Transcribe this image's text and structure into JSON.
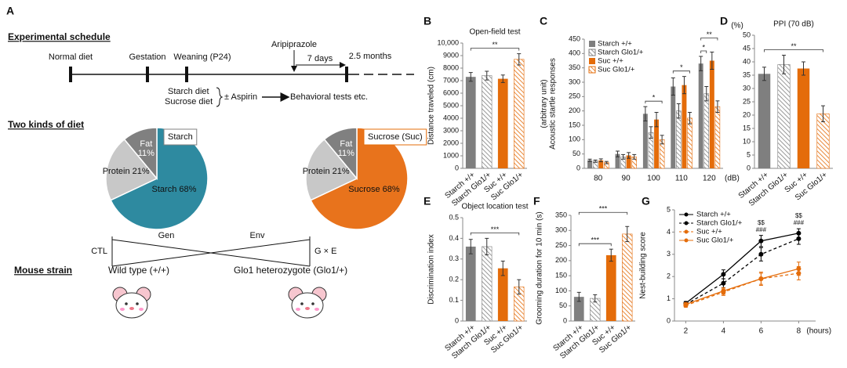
{
  "panel_a": {
    "letter": "A",
    "schedule_title": "Experimental schedule",
    "timeline": [
      "Normal diet",
      "Gestation",
      "Weaning (P24)"
    ],
    "drug": "Aripiprazole",
    "interval": "7 days",
    "duration": "2.5 months",
    "diets": [
      "Starch diet",
      "Sucrose diet"
    ],
    "treatment": "± Aspirin",
    "tests": "Behavioral tests etc.",
    "diet_title": "Two kinds of diet",
    "factors": [
      "Gen",
      "Env"
    ],
    "groups": [
      "CTL",
      "G × E"
    ],
    "strain_title": "Mouse strain",
    "strains": [
      "Wild type (+/+)",
      "Glo1 heterozygote (Glo1/+)"
    ]
  },
  "chart_data": [
    {
      "type": "bar",
      "panel": "B",
      "title": "Open-field test",
      "ylabel": "Distance traveled (cm)",
      "categories": [
        "Starch +/+",
        "Starch Glo1/+",
        "Suc +/+",
        "Suc Glo1/+"
      ],
      "values": [
        7300,
        7400,
        7150,
        8700
      ],
      "errors": [
        350,
        350,
        300,
        450
      ],
      "colors": [
        "#7f7f7f",
        "#7f7f7f",
        "#e46c0a",
        "#e46c0a"
      ],
      "hatched": [
        false,
        true,
        false,
        true
      ],
      "ylim": [
        0,
        10000
      ],
      "yticks": [
        0,
        1000,
        2000,
        3000,
        4000,
        5000,
        6000,
        7000,
        8000,
        9000,
        {
          "value": 10000,
          "label": "10,000"
        }
      ],
      "significance": [
        {
          "text": "**",
          "between": [
            0,
            3
          ]
        }
      ]
    },
    {
      "type": "grouped_bar",
      "panel": "C",
      "ylabel": [
        "Acoustic startle responses",
        "(arbitrary unit)"
      ],
      "categories": [
        "80",
        "90",
        "100",
        "110",
        "120"
      ],
      "x_unit": "(dB)",
      "series": [
        {
          "name": "Starch +/+",
          "color": "#7f7f7f",
          "hatched": false,
          "values": [
            28,
            50,
            190,
            285,
            365
          ],
          "errors": [
            4,
            10,
            25,
            30,
            25
          ]
        },
        {
          "name": "Starch Glo1/+",
          "color": "#7f7f7f",
          "hatched": true,
          "values": [
            25,
            40,
            125,
            200,
            260
          ],
          "errors": [
            4,
            8,
            20,
            25,
            25
          ]
        },
        {
          "name": "Suc +/+",
          "color": "#e46c0a",
          "hatched": false,
          "values": [
            28,
            45,
            170,
            290,
            375
          ],
          "errors": [
            5,
            10,
            25,
            30,
            30
          ]
        },
        {
          "name": "Suc Glo1/+",
          "color": "#e46c0a",
          "hatched": true,
          "values": [
            20,
            40,
            100,
            175,
            215
          ],
          "errors": [
            4,
            8,
            15,
            20,
            20
          ]
        }
      ],
      "ylim": [
        0,
        450
      ],
      "yticks": [
        0,
        50,
        100,
        150,
        200,
        250,
        300,
        350,
        400,
        450
      ],
      "significance": [
        {
          "text": "*",
          "category": 2,
          "between": [
            0,
            3
          ]
        },
        {
          "text": "*",
          "category": 3,
          "between": [
            0,
            3
          ]
        },
        {
          "text": "*",
          "category": 4,
          "between": [
            0,
            1
          ]
        },
        {
          "text": "**",
          "category": 4,
          "between": [
            0,
            3
          ]
        }
      ]
    },
    {
      "type": "bar",
      "panel": "D",
      "title": "PPI (70 dB)",
      "ylabel": "(%)",
      "categories": [
        "Starch +/+",
        "Starch Glo1/+",
        "Suc +/+",
        "Suc Glo1/+"
      ],
      "values": [
        35.5,
        39,
        37.5,
        20.5
      ],
      "errors": [
        2.5,
        3.5,
        2.5,
        3
      ],
      "colors": [
        "#7f7f7f",
        "#7f7f7f",
        "#e46c0a",
        "#e46c0a"
      ],
      "hatched": [
        false,
        true,
        false,
        true
      ],
      "ylim": [
        0,
        50
      ],
      "yticks": [
        0,
        5,
        10,
        15,
        20,
        25,
        30,
        35,
        40,
        45,
        50
      ],
      "significance": [
        {
          "text": "**",
          "between": [
            0,
            3
          ]
        }
      ]
    },
    {
      "type": "bar",
      "panel": "E",
      "title": "Object location test",
      "ylabel": "Discrimination index",
      "categories": [
        "Starch +/+",
        "Starch Glo1/+",
        "Suc +/+",
        "Suc Glo1/+"
      ],
      "values": [
        0.36,
        0.36,
        0.255,
        0.165
      ],
      "errors": [
        0.035,
        0.04,
        0.035,
        0.035
      ],
      "colors": [
        "#7f7f7f",
        "#7f7f7f",
        "#e46c0a",
        "#e46c0a"
      ],
      "hatched": [
        false,
        true,
        false,
        true
      ],
      "ylim": [
        0,
        0.5
      ],
      "yticks": [
        0,
        0.1,
        0.2,
        0.3,
        0.4,
        0.5
      ],
      "significance": [
        {
          "text": "***",
          "between": [
            0,
            3
          ]
        }
      ]
    },
    {
      "type": "bar",
      "panel": "F",
      "ylabel": "Grooming duration for 10 min (s)",
      "categories": [
        "Starch +/+",
        "Starch Glo1/+",
        "Suc +/+",
        "Suc Glo1/+"
      ],
      "values": [
        80,
        75,
        218,
        288
      ],
      "errors": [
        15,
        12,
        20,
        25
      ],
      "colors": [
        "#7f7f7f",
        "#7f7f7f",
        "#e46c0a",
        "#e46c0a"
      ],
      "hatched": [
        false,
        true,
        false,
        true
      ],
      "ylim": [
        0,
        350
      ],
      "yticks": [
        0,
        50,
        100,
        150,
        200,
        250,
        300,
        350
      ],
      "significance": [
        {
          "text": "***",
          "between": [
            0,
            2
          ]
        },
        {
          "text": "***",
          "between": [
            0,
            3
          ]
        }
      ]
    },
    {
      "type": "line",
      "panel": "G",
      "ylabel": "Nest-building score",
      "x": [
        2,
        4,
        6,
        8
      ],
      "x_unit": "(hours)",
      "xlim": [
        1.4,
        8.9
      ],
      "xticks": [
        2,
        4,
        6,
        8
      ],
      "ylim": [
        0,
        5
      ],
      "yticks": [
        0,
        1,
        2,
        3,
        4,
        5
      ],
      "series": [
        {
          "name": "Starch +/+",
          "color": "#000000",
          "dashed": false,
          "values": [
            0.8,
            2.1,
            3.6,
            3.95
          ],
          "errors": [
            0.08,
            0.2,
            0.25,
            0.2
          ]
        },
        {
          "name": "Starch Glo1/+",
          "color": "#000000",
          "dashed": true,
          "values": [
            0.75,
            1.7,
            3.0,
            3.7
          ],
          "errors": [
            0.08,
            0.2,
            0.3,
            0.25
          ]
        },
        {
          "name": "Suc +/+",
          "color": "#e46c0a",
          "dashed": true,
          "values": [
            0.7,
            1.3,
            1.9,
            2.15
          ],
          "errors": [
            0.08,
            0.15,
            0.3,
            0.3
          ]
        },
        {
          "name": "Suc Glo1/+",
          "color": "#e46c0a",
          "dashed": false,
          "values": [
            0.75,
            1.35,
            1.9,
            2.35
          ],
          "errors": [
            0.08,
            0.15,
            0.25,
            0.3
          ]
        }
      ],
      "annotations": [
        {
          "text": "$$",
          "x": 6
        },
        {
          "text": "###",
          "x": 6
        },
        {
          "text": "$$",
          "x": 8
        },
        {
          "text": "###",
          "x": 8
        }
      ]
    },
    {
      "type": "pie",
      "label": "Starch",
      "label_color": "#808080",
      "categories": [
        "Starch",
        "Protein",
        "Fat"
      ],
      "values": [
        68,
        21,
        11
      ],
      "value_labels": [
        "68%",
        "21%",
        "11%"
      ],
      "colors": [
        "#2e8aa0",
        "#c8c8c8",
        "#808080"
      ]
    },
    {
      "type": "pie",
      "label": "Sucrose (Suc)",
      "label_color": "#e46c0a",
      "categories": [
        "Sucrose",
        "Protein",
        "Fat"
      ],
      "values": [
        68,
        21,
        11
      ],
      "value_labels": [
        "68%",
        "21%",
        "11%"
      ],
      "colors": [
        "#e8731c",
        "#c8c8c8",
        "#808080"
      ]
    }
  ]
}
